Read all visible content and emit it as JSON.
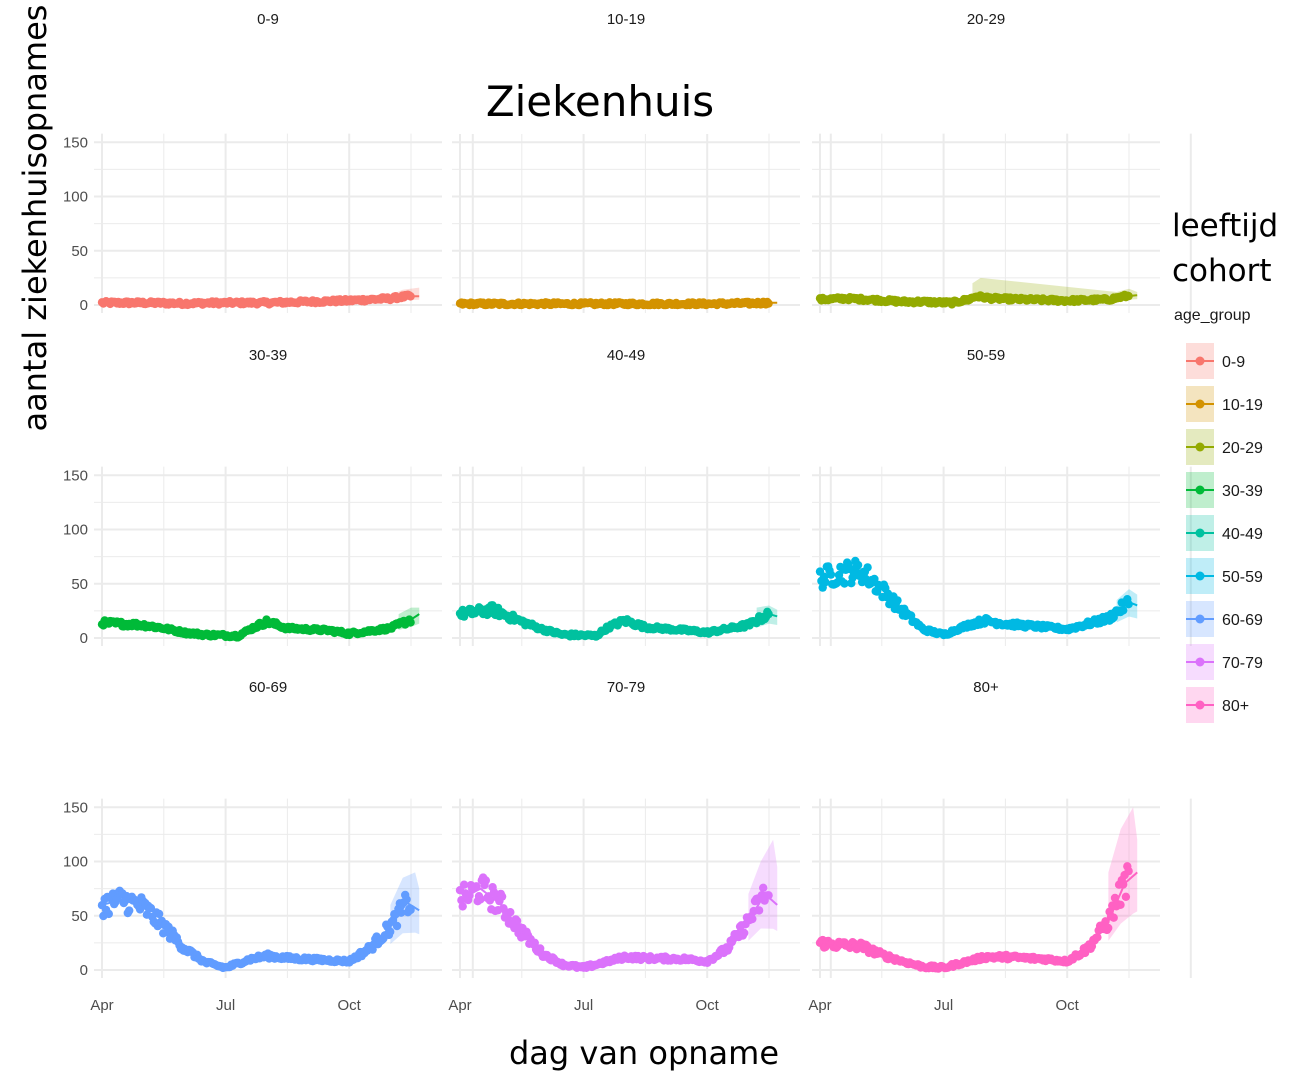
{
  "chart_data": {
    "type": "scatter",
    "title": "Ziekenhuis",
    "title_color": "#E07000",
    "xlabel": "dag van opname",
    "ylabel": "aantal ziekenhuisopnames",
    "x_ticks": [
      "Apr",
      "Jul",
      "Oct"
    ],
    "y_ticks": [
      0,
      50,
      100,
      150
    ],
    "ylim": [
      0,
      150
    ],
    "grid": true,
    "legend": {
      "title_line1": "leeftijd",
      "title_line2": "cohort",
      "subtitle": "age_group",
      "placement": "right"
    },
    "panels": [
      {
        "name": "0-9",
        "color": "#F8766D",
        "keypoints": [
          [
            0,
            2
          ],
          [
            1,
            2
          ],
          [
            2,
            1.5
          ],
          [
            3,
            2
          ],
          [
            4,
            2
          ],
          [
            5,
            3
          ],
          [
            6,
            4
          ],
          [
            7,
            6
          ],
          [
            7.4,
            8
          ]
        ],
        "band": [
          [
            6.8,
            6
          ],
          [
            7.3,
            14
          ],
          [
            7.7,
            16
          ]
        ]
      },
      {
        "name": "10-19",
        "color": "#D39200",
        "keypoints": [
          [
            0,
            1
          ],
          [
            1,
            1
          ],
          [
            2,
            1
          ],
          [
            3,
            1
          ],
          [
            4,
            1
          ],
          [
            5,
            1
          ],
          [
            6,
            1
          ],
          [
            7,
            1.5
          ],
          [
            7.4,
            2
          ]
        ],
        "band": []
      },
      {
        "name": "20-29",
        "color": "#93AA00",
        "keypoints": [
          [
            0,
            5
          ],
          [
            0.6,
            6
          ],
          [
            1.2,
            5
          ],
          [
            2,
            3
          ],
          [
            2.4,
            3
          ],
          [
            3.2,
            2
          ],
          [
            3.6,
            5
          ],
          [
            3.8,
            8
          ],
          [
            4.2,
            6
          ],
          [
            5,
            5
          ],
          [
            6,
            4
          ],
          [
            7,
            5
          ],
          [
            7.4,
            8
          ],
          [
            7.7,
            9
          ]
        ],
        "band": [
          [
            3.7,
            20
          ],
          [
            3.9,
            25
          ],
          [
            7.2,
            12
          ],
          [
            7.5,
            15
          ],
          [
            7.7,
            12
          ]
        ]
      },
      {
        "name": "30-39",
        "color": "#00BA38",
        "keypoints": [
          [
            0,
            14
          ],
          [
            1,
            12
          ],
          [
            1.5,
            9
          ],
          [
            2,
            5
          ],
          [
            2.5,
            3
          ],
          [
            3.3,
            2
          ],
          [
            3.7,
            10
          ],
          [
            4.0,
            15
          ],
          [
            4.5,
            9
          ],
          [
            5.5,
            7
          ],
          [
            6,
            4
          ],
          [
            7,
            9
          ],
          [
            7.5,
            17
          ],
          [
            7.7,
            22
          ]
        ],
        "band": [
          [
            7.2,
            22
          ],
          [
            7.5,
            28
          ],
          [
            7.7,
            28
          ]
        ]
      },
      {
        "name": "40-49",
        "color": "#00C19F",
        "keypoints": [
          [
            0,
            22
          ],
          [
            0.8,
            26
          ],
          [
            1.5,
            15
          ],
          [
            2,
            8
          ],
          [
            2.5,
            3
          ],
          [
            3.3,
            2
          ],
          [
            3.6,
            10
          ],
          [
            4.0,
            16
          ],
          [
            4.5,
            10
          ],
          [
            5.5,
            7
          ],
          [
            6,
            5
          ],
          [
            7,
            12
          ],
          [
            7.5,
            22
          ],
          [
            7.7,
            20
          ]
        ],
        "band": [
          [
            7.2,
            28
          ],
          [
            7.5,
            30
          ],
          [
            7.7,
            26
          ]
        ]
      },
      {
        "name": "50-59",
        "color": "#00B9E3",
        "keypoints": [
          [
            0,
            55
          ],
          [
            0.5,
            60
          ],
          [
            1.0,
            62
          ],
          [
            1.5,
            45
          ],
          [
            2,
            25
          ],
          [
            2.5,
            8
          ],
          [
            3,
            3
          ],
          [
            3.6,
            12
          ],
          [
            4,
            16
          ],
          [
            4.5,
            13
          ],
          [
            5.5,
            10
          ],
          [
            6,
            8
          ],
          [
            7,
            18
          ],
          [
            7.5,
            33
          ],
          [
            7.7,
            30
          ]
        ],
        "band": [
          [
            7.2,
            35
          ],
          [
            7.5,
            45
          ],
          [
            7.7,
            40
          ]
        ]
      },
      {
        "name": "60-69",
        "color": "#619CFF",
        "keypoints": [
          [
            0,
            60
          ],
          [
            0.5,
            65
          ],
          [
            1,
            58
          ],
          [
            1.5,
            40
          ],
          [
            2,
            20
          ],
          [
            2.5,
            7
          ],
          [
            3,
            2
          ],
          [
            3.6,
            10
          ],
          [
            4,
            13
          ],
          [
            4.5,
            11
          ],
          [
            5.5,
            9
          ],
          [
            6,
            8
          ],
          [
            6.5,
            20
          ],
          [
            7,
            40
          ],
          [
            7.4,
            62
          ],
          [
            7.7,
            55
          ]
        ],
        "band": [
          [
            7.0,
            60
          ],
          [
            7.3,
            85
          ],
          [
            7.6,
            90
          ],
          [
            7.7,
            75
          ]
        ]
      },
      {
        "name": "70-79",
        "color": "#DB72FB",
        "keypoints": [
          [
            0,
            65
          ],
          [
            0.5,
            75
          ],
          [
            1,
            60
          ],
          [
            1.5,
            35
          ],
          [
            2,
            15
          ],
          [
            2.5,
            5
          ],
          [
            3,
            2
          ],
          [
            3.6,
            8
          ],
          [
            4,
            12
          ],
          [
            4.5,
            11
          ],
          [
            5.5,
            10
          ],
          [
            6,
            8
          ],
          [
            6.5,
            20
          ],
          [
            7,
            45
          ],
          [
            7.4,
            70
          ],
          [
            7.7,
            60
          ]
        ],
        "band": [
          [
            7.0,
            70
          ],
          [
            7.3,
            100
          ],
          [
            7.6,
            120
          ],
          [
            7.7,
            95
          ]
        ]
      },
      {
        "name": "80+",
        "color": "#FF61C3",
        "keypoints": [
          [
            0,
            25
          ],
          [
            0.5,
            23
          ],
          [
            1,
            22
          ],
          [
            1.5,
            14
          ],
          [
            2,
            8
          ],
          [
            2.5,
            3
          ],
          [
            3,
            2
          ],
          [
            3.6,
            8
          ],
          [
            4,
            12
          ],
          [
            4.5,
            12
          ],
          [
            5.5,
            10
          ],
          [
            6,
            8
          ],
          [
            6.5,
            20
          ],
          [
            7,
            45
          ],
          [
            7.4,
            80
          ],
          [
            7.7,
            90
          ]
        ],
        "band": [
          [
            7.0,
            90
          ],
          [
            7.3,
            130
          ],
          [
            7.6,
            150
          ],
          [
            7.7,
            120
          ]
        ]
      }
    ]
  }
}
